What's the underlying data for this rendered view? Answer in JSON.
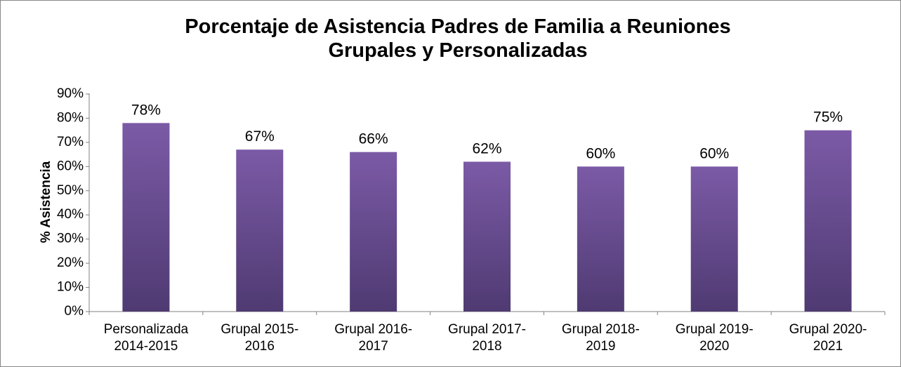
{
  "chart_data": {
    "type": "bar",
    "title": "Porcentaje de Asistencia Padres de Familia a Reuniones\nGrupales y Personalizadas",
    "y_label": "% Asistencia",
    "categories": [
      "Personalizada\n2014-2015",
      "Grupal 2015-\n2016",
      "Grupal 2016-\n2017",
      "Grupal 2017-\n2018",
      "Grupal 2018-\n2019",
      "Grupal 2019-\n2020",
      "Grupal 2020-\n2021"
    ],
    "values": [
      78,
      67,
      66,
      62,
      60,
      60,
      75
    ],
    "value_labels": [
      "78%",
      "67%",
      "66%",
      "62%",
      "60%",
      "60%",
      "75%"
    ],
    "color": "#7b5aa6",
    "ylim": [
      0,
      90
    ],
    "yticks": [
      {
        "value": 0,
        "label": "0%"
      },
      {
        "value": 10,
        "label": "10%"
      },
      {
        "value": 20,
        "label": "20%"
      },
      {
        "value": 30,
        "label": "30%"
      },
      {
        "value": 40,
        "label": "40%"
      },
      {
        "value": 50,
        "label": "50%"
      },
      {
        "value": 60,
        "label": "60%"
      },
      {
        "value": 70,
        "label": "70%"
      },
      {
        "value": 80,
        "label": "80%"
      },
      {
        "value": 90,
        "label": "90%"
      }
    ],
    "grid": false
  }
}
